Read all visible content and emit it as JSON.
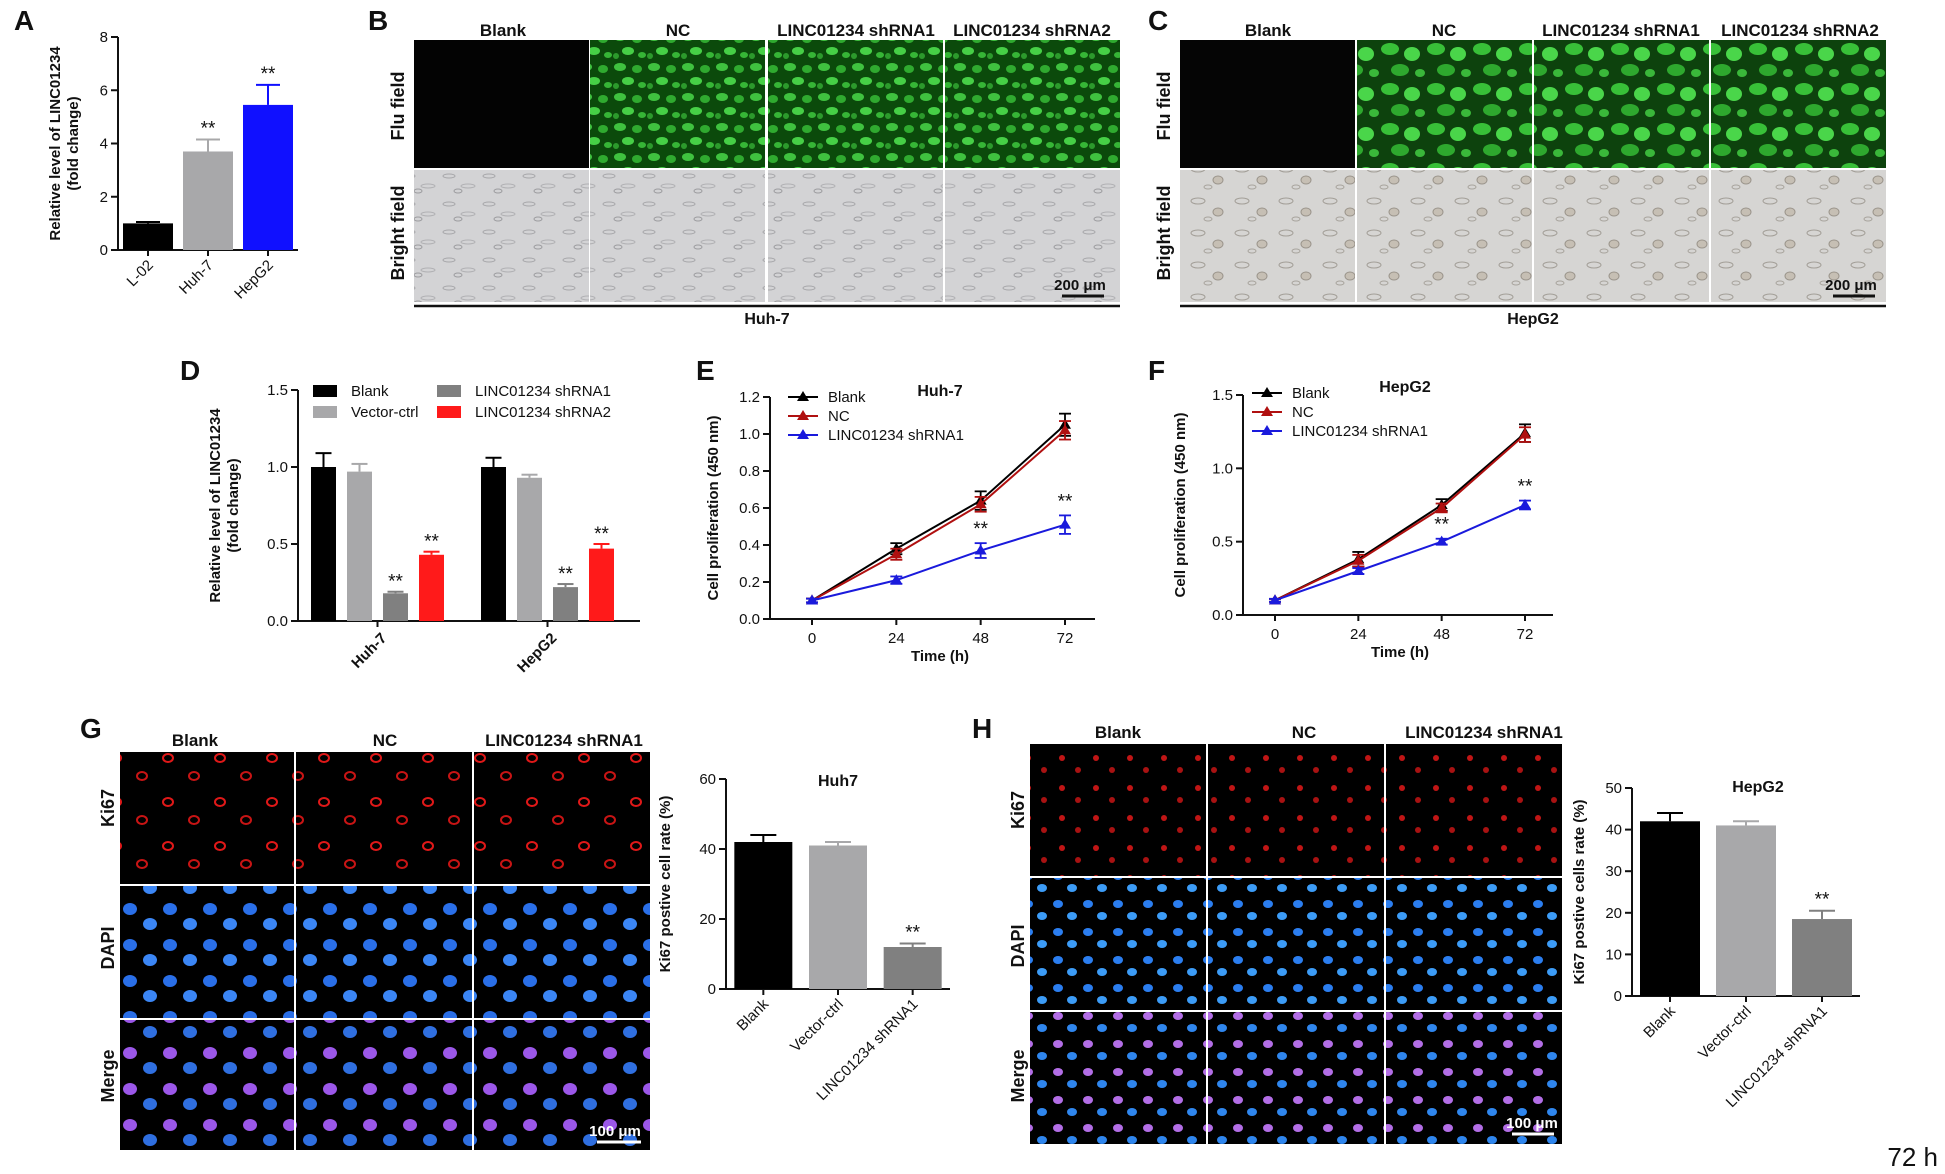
{
  "colors": {
    "black": "#000000",
    "gray": "#a8a8aa",
    "blue": "#1010ff",
    "darkgray": "#808080",
    "red": "#ff1a1a",
    "darkred": "#b01010",
    "lineblue": "#1a1adc"
  },
  "corner_label": "72 h",
  "significance": "**",
  "panels": {
    "A": {
      "letter": "A"
    },
    "B": {
      "letter": "B",
      "columns": [
        "Blank",
        "NC",
        "LINC01234 shRNA1",
        "LINC01234 shRNA2"
      ],
      "rows": [
        "Flu field",
        "Bright field"
      ],
      "scale": "200 μm",
      "cell_line": "Huh-7"
    },
    "C": {
      "letter": "C",
      "columns": [
        "Blank",
        "NC",
        "LINC01234 shRNA1",
        "LINC01234 shRNA2"
      ],
      "rows": [
        "Flu field",
        "Bright field"
      ],
      "scale": "200 μm",
      "cell_line": "HepG2"
    },
    "D": {
      "letter": "D"
    },
    "E": {
      "letter": "E"
    },
    "F": {
      "letter": "F"
    },
    "G": {
      "letter": "G",
      "columns": [
        "Blank",
        "NC",
        "LINC01234 shRNA1"
      ],
      "rows": [
        "Ki67",
        "DAPI",
        "Merge"
      ],
      "scale": "100 μm"
    },
    "H": {
      "letter": "H",
      "columns": [
        "Blank",
        "NC",
        "LINC01234 shRNA1"
      ],
      "rows": [
        "Ki67",
        "DAPI",
        "Merge"
      ],
      "scale": "100 μm"
    }
  },
  "chart_data": [
    {
      "id": "A",
      "type": "bar",
      "categories": [
        "L-02",
        "Huh-7",
        "HepG2"
      ],
      "values": [
        1.0,
        3.7,
        5.45
      ],
      "errors": [
        0.05,
        0.45,
        0.75
      ],
      "significant": [
        false,
        true,
        true
      ],
      "ylabel": "Relative level of LINC01234 (fold change)",
      "ylim": [
        0,
        8
      ],
      "yticks": [
        0,
        2,
        4,
        6,
        8
      ]
    },
    {
      "id": "D",
      "type": "bar",
      "groups": [
        "Huh-7",
        "HepG2"
      ],
      "series": [
        {
          "name": "Blank",
          "values": [
            1.0,
            1.0
          ],
          "errors": [
            0.09,
            0.06
          ]
        },
        {
          "name": "Vector-ctrl",
          "values": [
            0.97,
            0.93
          ],
          "errors": [
            0.05,
            0.02
          ]
        },
        {
          "name": "LINC01234 shRNA1",
          "values": [
            0.18,
            0.22
          ],
          "errors": [
            0.01,
            0.02
          ]
        },
        {
          "name": "LINC01234 shRNA2",
          "values": [
            0.43,
            0.47
          ],
          "errors": [
            0.02,
            0.03
          ]
        }
      ],
      "significant_series": [
        "LINC01234 shRNA1",
        "LINC01234 shRNA2"
      ],
      "ylabel": "Relative level of LINC01234 (fold change)",
      "ylim": [
        0,
        1.5
      ],
      "yticks": [
        0.0,
        0.5,
        1.0,
        1.5
      ],
      "legend": "top"
    },
    {
      "id": "E",
      "type": "line",
      "title": "Huh-7",
      "x": [
        0,
        24,
        48,
        72
      ],
      "series": [
        {
          "name": "Blank",
          "values": [
            0.1,
            0.38,
            0.64,
            1.05
          ],
          "errors": [
            0.01,
            0.03,
            0.05,
            0.06
          ]
        },
        {
          "name": "NC",
          "values": [
            0.1,
            0.35,
            0.62,
            1.02
          ],
          "errors": [
            0.01,
            0.03,
            0.04,
            0.05
          ]
        },
        {
          "name": "LINC01234 shRNA1",
          "values": [
            0.1,
            0.21,
            0.37,
            0.51
          ],
          "errors": [
            0.01,
            0.02,
            0.04,
            0.05
          ]
        }
      ],
      "significant_x": [
        48,
        72
      ],
      "xlabel": "Time (h)",
      "ylabel": "Cell proliferation (450 nm)",
      "ylim": [
        0,
        1.2
      ],
      "yticks": [
        0.0,
        0.2,
        0.4,
        0.6,
        0.8,
        1.0,
        1.2
      ],
      "legend": "top-left"
    },
    {
      "id": "F",
      "type": "line",
      "title": "HepG2",
      "x": [
        0,
        24,
        48,
        72
      ],
      "series": [
        {
          "name": "Blank",
          "values": [
            0.1,
            0.38,
            0.75,
            1.24
          ],
          "errors": [
            0.01,
            0.05,
            0.04,
            0.06
          ]
        },
        {
          "name": "NC",
          "values": [
            0.1,
            0.37,
            0.73,
            1.23
          ],
          "errors": [
            0.01,
            0.04,
            0.03,
            0.05
          ]
        },
        {
          "name": "LINC01234 shRNA1",
          "values": [
            0.1,
            0.3,
            0.5,
            0.75
          ],
          "errors": [
            0.01,
            0.02,
            0.02,
            0.03
          ]
        }
      ],
      "significant_x": [
        48,
        72
      ],
      "xlabel": "Time (h)",
      "ylabel": "Cell proliferation (450 nm)",
      "ylim": [
        0,
        1.5
      ],
      "yticks": [
        0.0,
        0.5,
        1.0,
        1.5
      ],
      "legend": "top-left"
    },
    {
      "id": "G",
      "type": "bar",
      "title": "Huh7",
      "categories": [
        "Blank",
        "Vector-ctrl",
        "LINC01234 shRNA1"
      ],
      "values": [
        42,
        41,
        12
      ],
      "errors": [
        2,
        1,
        1
      ],
      "significant": [
        false,
        false,
        true
      ],
      "ylabel": "Ki67 postive cell rate (%)",
      "ylim": [
        0,
        60
      ],
      "yticks": [
        0,
        20,
        40,
        60
      ]
    },
    {
      "id": "H",
      "type": "bar",
      "title": "HepG2",
      "categories": [
        "Blank",
        "Vector-ctrl",
        "LINC01234 shRNA1"
      ],
      "values": [
        42,
        41,
        18.5
      ],
      "errors": [
        2,
        1,
        2
      ],
      "significant": [
        false,
        false,
        true
      ],
      "ylabel": "Ki67 postive cells rate (%)",
      "ylim": [
        0,
        50
      ],
      "yticks": [
        0,
        10,
        20,
        30,
        40,
        50
      ]
    }
  ]
}
